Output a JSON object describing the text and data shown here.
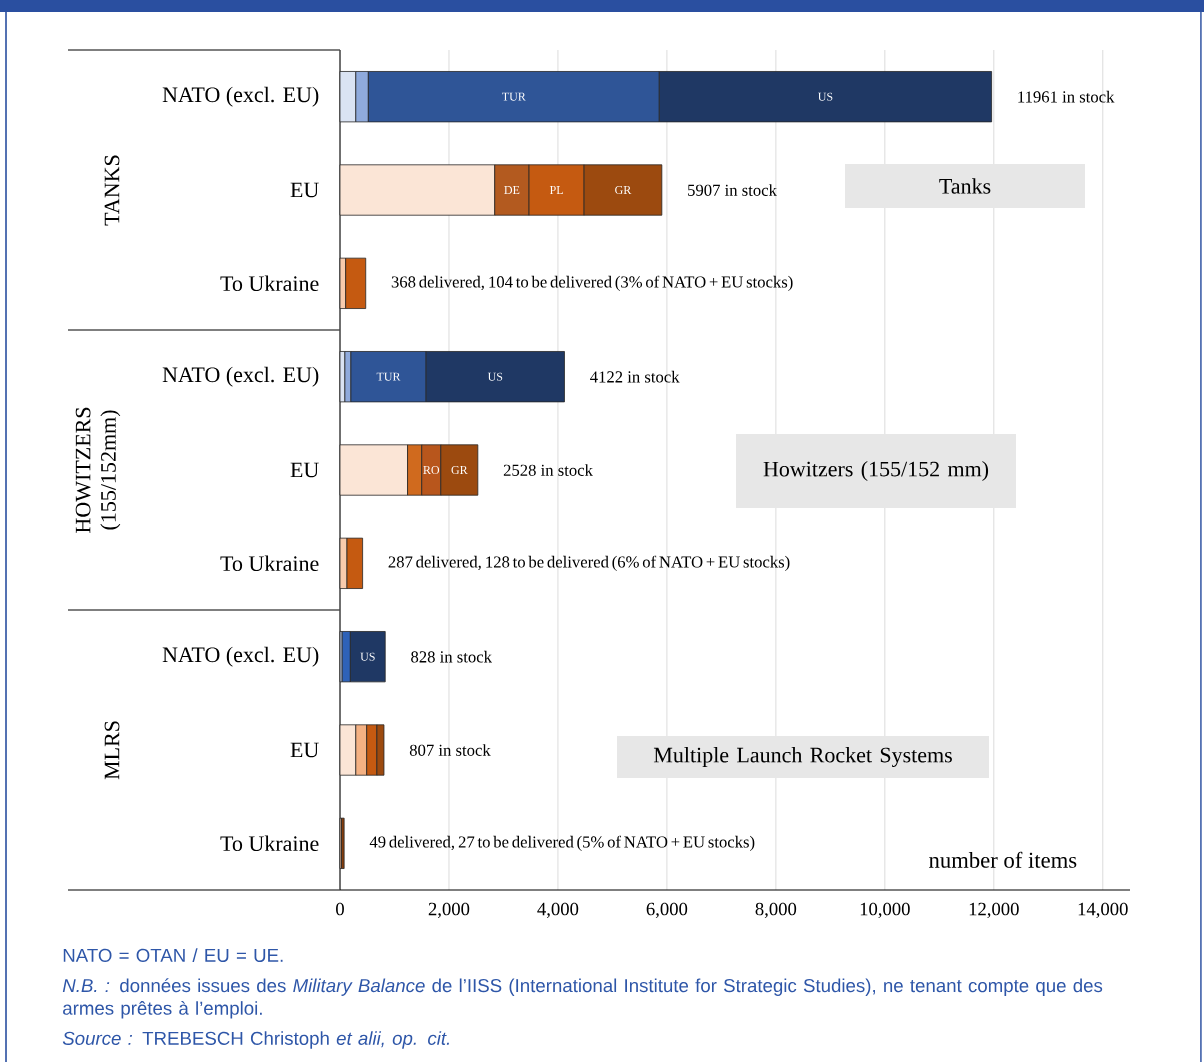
{
  "chart_data": {
    "type": "bar",
    "orientation": "horizontal",
    "stacked": true,
    "categories": [
      "NATO (excl. EU)",
      "EU",
      "To Ukraine",
      "NATO (excl. EU)",
      "EU",
      "To Ukraine",
      "NATO (excl. EU)",
      "EU",
      "To Ukraine"
    ],
    "series": [
      {
        "values": [
          290,
          2840,
          104,
          90,
          1240,
          128,
          40,
          290,
          27
        ],
        "colors": [
          "#dae3f3",
          "#fbe5d6",
          "#f8cbad",
          "#dae3f3",
          "#fbe5d6",
          "#f8cbad",
          "#b4c7e7",
          "#fbe5d6",
          "#f8cbad"
        ]
      },
      {
        "values": [
          230,
          630,
          368,
          110,
          260,
          287,
          150,
          200,
          49
        ],
        "colors": [
          "#8faadc",
          "#b35a1f",
          "#c55a11",
          "#8faadc",
          "#d06a1e",
          "#c55a11",
          "#2e62b8",
          "#f4b183",
          "#843c0c"
        ],
        "value_labels": [
          null,
          "DE",
          null,
          null,
          null,
          null,
          null,
          null,
          null
        ]
      },
      {
        "values": [
          5340,
          1010,
          null,
          1380,
          350,
          null,
          640,
          187,
          null
        ],
        "colors": [
          "#2f5597",
          "#c55a11",
          null,
          "#2f5597",
          "#b8561c",
          null,
          "#1f3864",
          "#c55a11",
          null
        ],
        "value_labels": [
          "TUR",
          "PL",
          null,
          "TUR",
          "RO",
          null,
          "US",
          null,
          null
        ]
      },
      {
        "values": [
          6100,
          1427,
          null,
          2540,
          680,
          null,
          null,
          130,
          null
        ],
        "colors": [
          "#1f3864",
          "#9c4a0f",
          null,
          "#1f3864",
          "#9c4a0f",
          null,
          null,
          "#9c4a0f",
          null
        ],
        "value_labels": [
          "US",
          "GR",
          null,
          "US",
          "GR",
          null,
          null,
          null,
          null
        ]
      }
    ],
    "totals": [
      "11961 in stock",
      "5907 in stock",
      "368 delivered, 104 to be delivered (3% of NATO + EU stocks)",
      "4122 in stock",
      "2528 in stock",
      "287 delivered, 128 to be delivered (6% of NATO + EU stocks)",
      "828 in stock",
      "807 in stock",
      "49 delivered, 27 to be delivered (5% of NATO + EU stocks)"
    ],
    "xlabel": "number of items",
    "xlim": [
      0,
      14500
    ],
    "xticks": [
      0,
      {
        "value": 2000,
        "label": "2,000"
      },
      {
        "value": 4000,
        "label": "4,000"
      },
      {
        "value": 6000,
        "label": "6,000"
      },
      {
        "value": 8000,
        "label": "8,000"
      },
      {
        "value": 10000,
        "label": "10,000"
      },
      {
        "value": 12000,
        "label": "12,000"
      },
      {
        "value": 14000,
        "label": "14,000"
      }
    ],
    "grid": "x",
    "annotations": [
      "TANKS",
      "HOWITZERS (155/152mm)",
      "MLRS",
      "Tanks",
      "Howitzers (155/152 mm)",
      "Multiple Launch Rocket Systems",
      "NATO = OTAN / EU = UE.",
      "*N.B. :* données issues des *Military Balance* de l’IISS (International Institute for Strategic Studies), ne tenant compte que des armes prêtes à l’emploi.",
      "*Source :* TREBESCH Christoph *et alii, op. cit.*"
    ]
  }
}
